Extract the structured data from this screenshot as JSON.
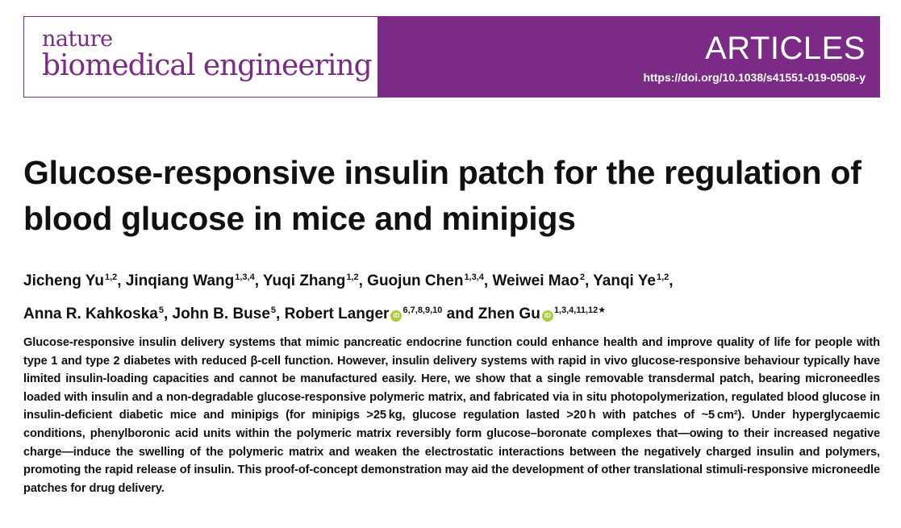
{
  "header": {
    "journal_line1": "nature",
    "journal_line2": "biomedical engineering",
    "section": "ARTICLES",
    "doi": "https://doi.org/10.1038/s41551-019-0508-y",
    "brand_color": "#7b2b86"
  },
  "article": {
    "title": "Glucose-responsive insulin patch for the regulation of blood glucose in mice and minipigs",
    "authors": [
      {
        "name": "Jicheng Yu",
        "affil": "1,2",
        "sep": ", "
      },
      {
        "name": "Jinqiang Wang",
        "affil": "1,3,4",
        "sep": ", "
      },
      {
        "name": "Yuqi Zhang",
        "affil": "1,2",
        "sep": ", "
      },
      {
        "name": "Guojun Chen",
        "affil": "1,3,4",
        "sep": ", "
      },
      {
        "name": "Weiwei Mao",
        "affil": "2",
        "sep": ", "
      },
      {
        "name": "Yanqi Ye",
        "affil": "1,2",
        "sep": ","
      },
      {
        "name": "Anna R. Kahkoska",
        "affil": "5",
        "sep": ", "
      },
      {
        "name": "John B. Buse",
        "affil": "5",
        "sep": ", "
      },
      {
        "name": "Robert Langer",
        "affil": "6,7,8,9,10",
        "sep": " and ",
        "orcid": true
      },
      {
        "name": "Zhen Gu",
        "affil": "1,3,4,11,12★",
        "sep": "",
        "orcid": true
      }
    ],
    "orcid_icon_color": "#a6ce39",
    "abstract": "Glucose-responsive insulin delivery systems that mimic pancreatic endocrine function could enhance health and improve quality of life for people with type 1 and type 2 diabetes with reduced β-cell function. However, insulin delivery systems with rapid in vivo glucose-responsive behaviour typically have limited insulin-loading capacities and cannot be manufactured easily. Here, we show that a single removable transdermal patch, bearing microneedles loaded with insulin and a non-degradable glucose-responsive polymeric matrix, and fabricated via in situ photopolymerization, regulated blood glucose in insulin-deficient diabetic mice and minipigs (for minipigs >25 kg, glucose regulation lasted >20 h with patches of ~5 cm²). Under hyperglycaemic conditions, phenylboronic acid units within the polymeric matrix reversibly form glucose–boronate complexes that—owing to their increased negative charge—induce the swelling of the polymeric matrix and weaken the electrostatic interactions between the negatively charged insulin and polymers, promoting the rapid release of insulin. This proof-of-concept demonstration may aid the development of other translational stimuli-responsive microneedle patches for drug delivery."
  }
}
